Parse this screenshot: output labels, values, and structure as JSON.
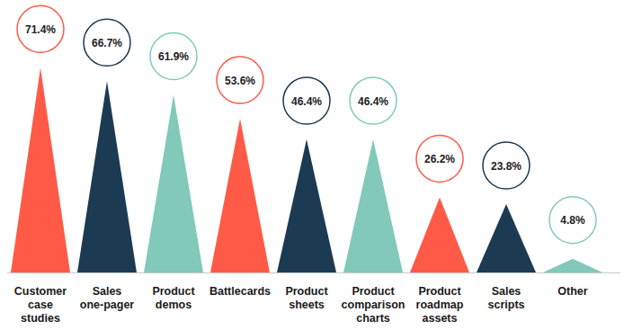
{
  "chart_data": {
    "type": "bar",
    "categories": [
      "Customer case studies",
      "Sales one-pager",
      "Product demos",
      "Battlecards",
      "Product sheets",
      "Product comparison charts",
      "Product roadmap assets",
      "Sales scripts",
      "Other"
    ],
    "values": [
      71.4,
      66.7,
      61.9,
      53.6,
      46.4,
      46.4,
      26.2,
      23.8,
      4.8
    ],
    "value_labels": [
      "71.4%",
      "66.7%",
      "61.9%",
      "53.6%",
      "46.4%",
      "46.4%",
      "26.2%",
      "23.8%",
      "4.8%"
    ],
    "colors": [
      "#ff5a47",
      "#1c3a52",
      "#82c9b9",
      "#ff5a47",
      "#1c3a52",
      "#82c9b9",
      "#ff5a47",
      "#1c3a52",
      "#82c9b9"
    ],
    "ylim": [
      0,
      90
    ],
    "data_labels": true,
    "tick_labels": "x",
    "grid": false
  }
}
